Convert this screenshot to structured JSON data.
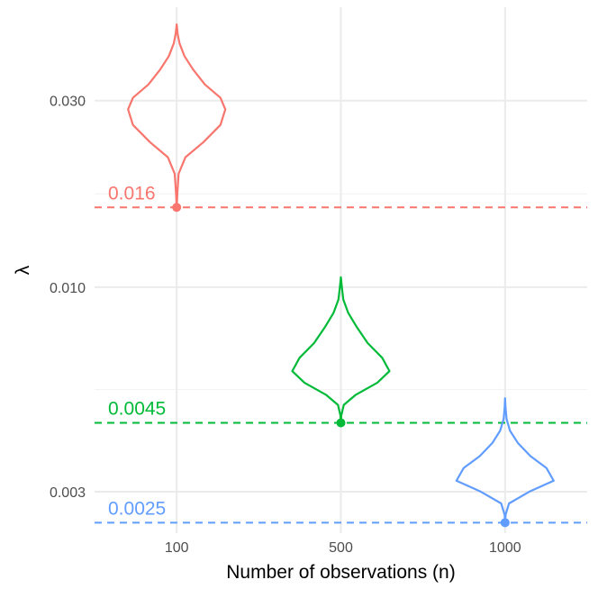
{
  "chart_data": {
    "type": "violin",
    "xlabel": "Number of observations (n)",
    "ylabel": "λ",
    "y_scale": "log",
    "ylim": [
      0.00235,
      0.052
    ],
    "y_ticks": [
      {
        "value": 0.003,
        "label": "0.003"
      },
      {
        "value": 0.01,
        "label": "0.010"
      },
      {
        "value": 0.03,
        "label": "0.030"
      }
    ],
    "categories": [
      "100",
      "500",
      "1000"
    ],
    "grid": true,
    "legend": "none",
    "series": [
      {
        "category": "100",
        "color": "#F8766D",
        "reference_value": 0.016,
        "reference_label": "0.016",
        "point_value": 0.016,
        "violin": {
          "y": [
            0.016,
            0.0175,
            0.0195,
            0.0215,
            0.0235,
            0.026,
            0.0285,
            0.0305,
            0.033,
            0.036,
            0.039,
            0.042,
            0.0445,
            0.047
          ],
          "width": [
            0.0,
            0.015,
            0.04,
            0.18,
            0.55,
            0.9,
            1.0,
            0.9,
            0.58,
            0.34,
            0.16,
            0.06,
            0.02,
            0.0
          ]
        }
      },
      {
        "category": "500",
        "color": "#00BA38",
        "reference_value": 0.0045,
        "reference_label": "0.0045",
        "point_value": 0.0045,
        "violin": {
          "y": [
            0.0045,
            0.0047,
            0.005,
            0.0053,
            0.0057,
            0.0061,
            0.0066,
            0.0072,
            0.0079,
            0.0086,
            0.0093,
            0.01,
            0.0106
          ],
          "width": [
            0.0,
            0.01,
            0.06,
            0.3,
            0.75,
            1.0,
            0.85,
            0.55,
            0.33,
            0.15,
            0.05,
            0.02,
            0.0
          ]
        }
      },
      {
        "category": "1000",
        "color": "#619CFF",
        "reference_value": 0.0025,
        "reference_label": "0.0025",
        "point_value": 0.0025,
        "violin": {
          "y": [
            0.0025,
            0.00262,
            0.0028,
            0.003,
            0.0032,
            0.00345,
            0.0037,
            0.004,
            0.0043,
            0.0046,
            0.0049,
            0.0052
          ],
          "width": [
            0.0,
            0.01,
            0.08,
            0.5,
            1.0,
            0.85,
            0.52,
            0.26,
            0.1,
            0.03,
            0.01,
            0.0
          ]
        }
      }
    ]
  }
}
